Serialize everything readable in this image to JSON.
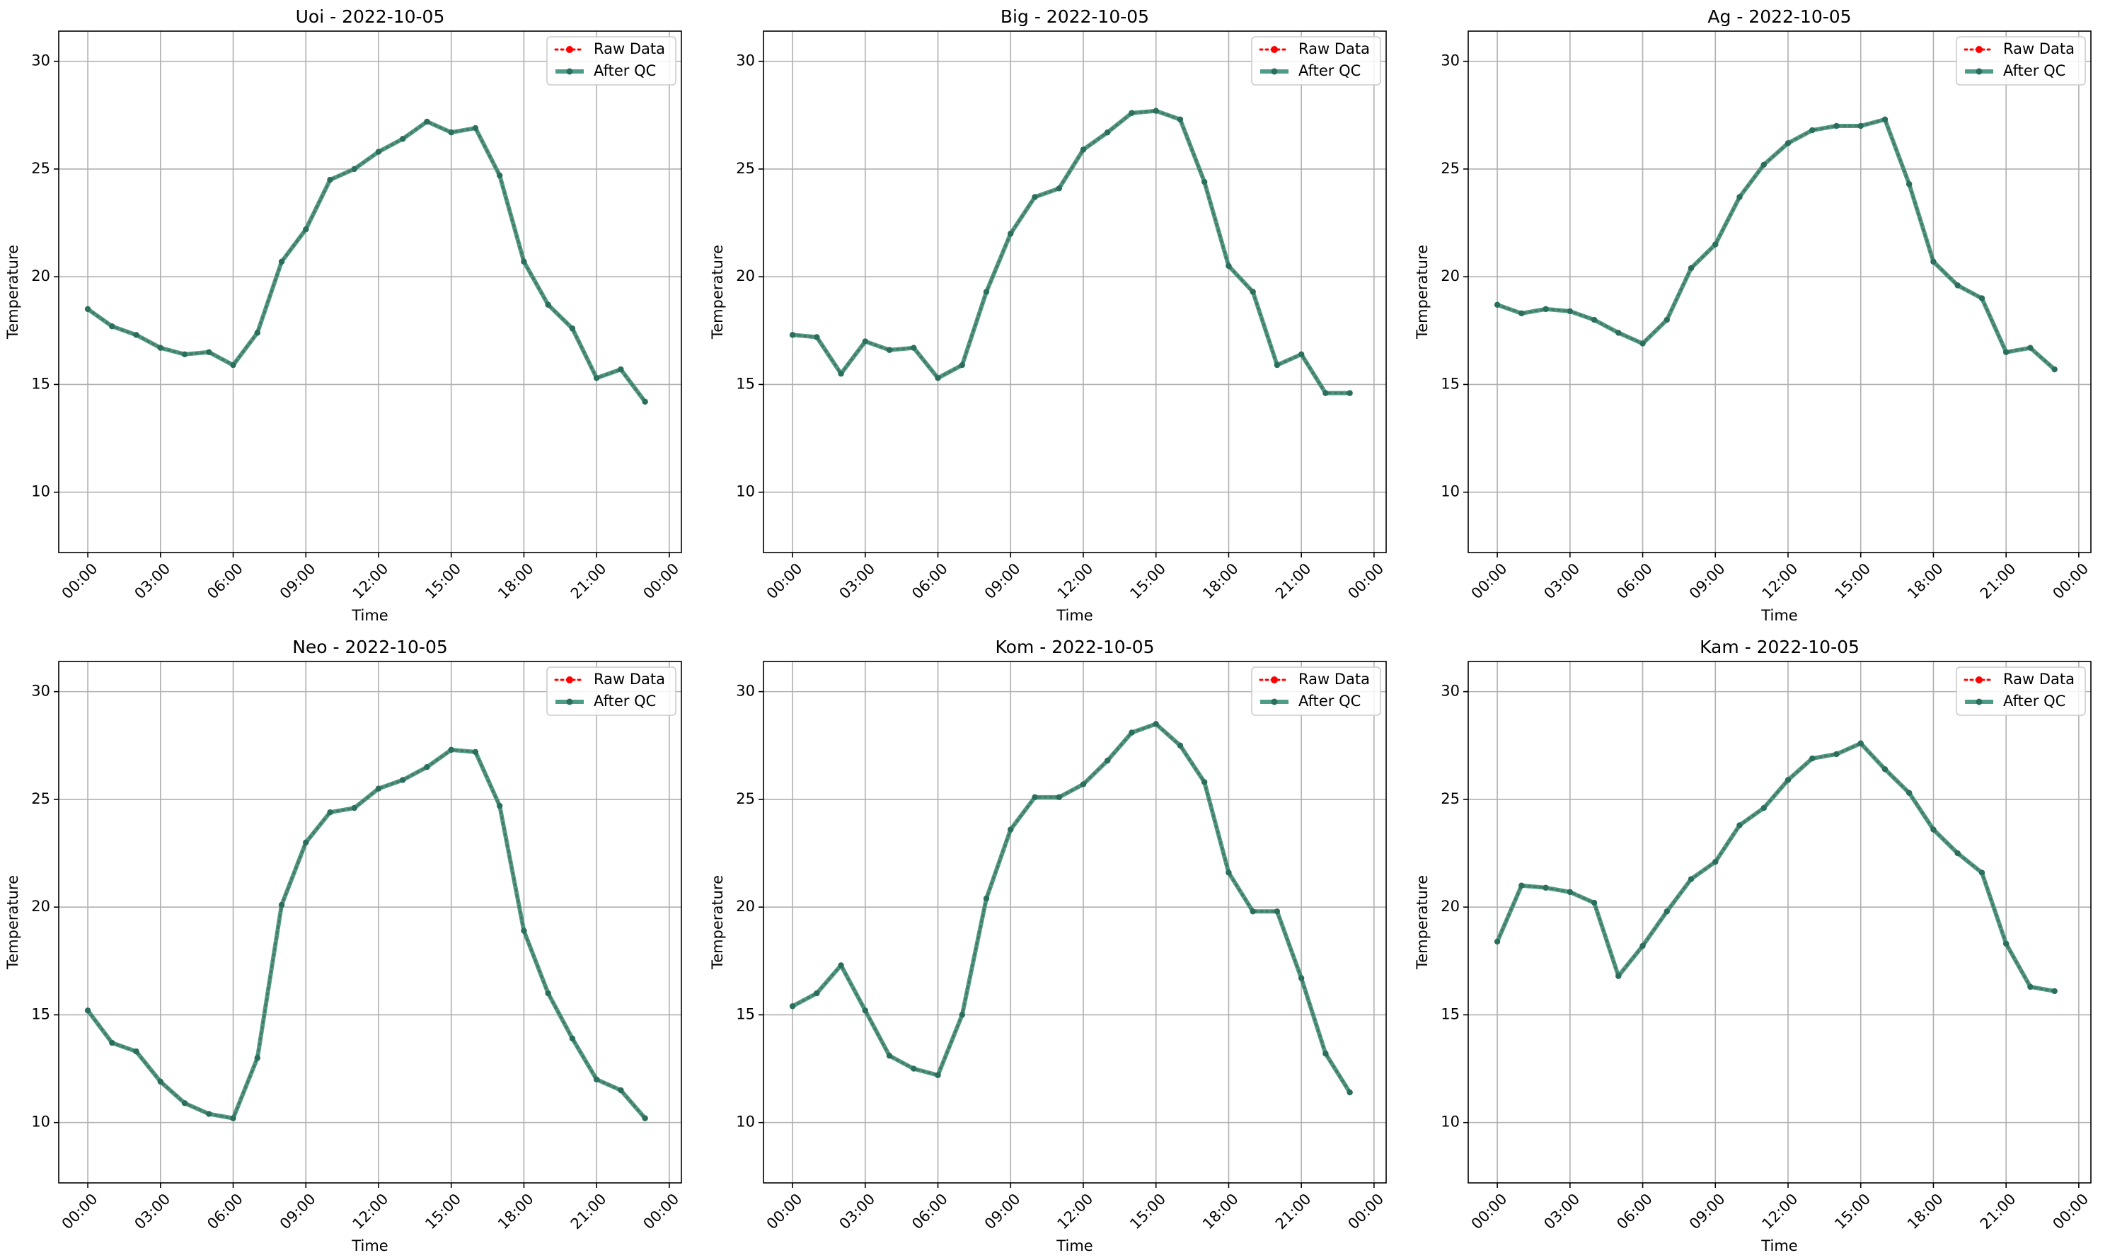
{
  "chart_data": [
    {
      "type": "line",
      "title": "Uoi - 2022-10-05",
      "xlabel": "Time",
      "ylabel": "Temperature",
      "ylim": [
        7.2,
        31.4
      ],
      "yticks": [
        10,
        15,
        20,
        25,
        30
      ],
      "x_hours": [
        0,
        1,
        2,
        3,
        4,
        5,
        6,
        7,
        8,
        9,
        10,
        11,
        12,
        13,
        14,
        15,
        16,
        17,
        18,
        19,
        20,
        21,
        22,
        23
      ],
      "xticks": [
        "00:00",
        "03:00",
        "06:00",
        "09:00",
        "12:00",
        "15:00",
        "18:00",
        "21:00",
        "00:00"
      ],
      "grid": true,
      "legend": "top-right",
      "series": [
        {
          "name": "Raw Data",
          "color": "#ff0000",
          "values": [
            18.5,
            17.7,
            17.3,
            16.7,
            16.4,
            16.5,
            15.9,
            17.4,
            20.7,
            22.2,
            24.5,
            25.0,
            25.8,
            26.4,
            27.2,
            26.7,
            26.9,
            24.7,
            20.7,
            18.7,
            17.6,
            15.3,
            15.7,
            14.2
          ]
        },
        {
          "name": "After QC",
          "color": "#2e8b72",
          "values": [
            18.5,
            17.7,
            17.3,
            16.7,
            16.4,
            16.5,
            15.9,
            17.4,
            20.7,
            22.2,
            24.5,
            25.0,
            25.8,
            26.4,
            27.2,
            26.7,
            26.9,
            24.7,
            20.7,
            18.7,
            17.6,
            15.3,
            15.7,
            14.2
          ]
        }
      ]
    },
    {
      "type": "line",
      "title": "Big - 2022-10-05",
      "xlabel": "Time",
      "ylabel": "Temperature",
      "ylim": [
        7.2,
        31.4
      ],
      "yticks": [
        10,
        15,
        20,
        25,
        30
      ],
      "x_hours": [
        0,
        1,
        2,
        3,
        4,
        5,
        6,
        7,
        8,
        9,
        10,
        11,
        12,
        13,
        14,
        15,
        16,
        17,
        18,
        19,
        20,
        21,
        22,
        23
      ],
      "xticks": [
        "00:00",
        "03:00",
        "06:00",
        "09:00",
        "12:00",
        "15:00",
        "18:00",
        "21:00",
        "00:00"
      ],
      "grid": true,
      "legend": "top-right",
      "series": [
        {
          "name": "Raw Data",
          "color": "#ff0000",
          "values": [
            17.3,
            17.2,
            15.5,
            17.0,
            16.6,
            16.7,
            15.3,
            15.9,
            19.3,
            22.0,
            23.7,
            24.1,
            25.9,
            26.7,
            27.6,
            27.7,
            27.3,
            24.4,
            20.5,
            19.3,
            15.9,
            16.4,
            14.6,
            14.6
          ]
        },
        {
          "name": "After QC",
          "color": "#2e8b72",
          "values": [
            17.3,
            17.2,
            15.5,
            17.0,
            16.6,
            16.7,
            15.3,
            15.9,
            19.3,
            22.0,
            23.7,
            24.1,
            25.9,
            26.7,
            27.6,
            27.7,
            27.3,
            24.4,
            20.5,
            19.3,
            15.9,
            16.4,
            14.6,
            14.6
          ]
        }
      ]
    },
    {
      "type": "line",
      "title": "Ag - 2022-10-05",
      "xlabel": "Time",
      "ylabel": "Temperature",
      "ylim": [
        7.2,
        31.4
      ],
      "yticks": [
        10,
        15,
        20,
        25,
        30
      ],
      "x_hours": [
        0,
        1,
        2,
        3,
        4,
        5,
        6,
        7,
        8,
        9,
        10,
        11,
        12,
        13,
        14,
        15,
        16,
        17,
        18,
        19,
        20,
        21,
        22,
        23
      ],
      "xticks": [
        "00:00",
        "03:00",
        "06:00",
        "09:00",
        "12:00",
        "15:00",
        "18:00",
        "21:00",
        "00:00"
      ],
      "grid": true,
      "legend": "top-right",
      "series": [
        {
          "name": "Raw Data",
          "color": "#ff0000",
          "values": [
            18.7,
            18.3,
            18.5,
            18.4,
            18.0,
            17.4,
            16.9,
            18.0,
            20.4,
            21.5,
            23.7,
            25.2,
            26.2,
            26.8,
            27.0,
            27.0,
            27.3,
            24.3,
            20.7,
            19.6,
            19.0,
            16.5,
            16.7,
            15.7
          ]
        },
        {
          "name": "After QC",
          "color": "#2e8b72",
          "values": [
            18.7,
            18.3,
            18.5,
            18.4,
            18.0,
            17.4,
            16.9,
            18.0,
            20.4,
            21.5,
            23.7,
            25.2,
            26.2,
            26.8,
            27.0,
            27.0,
            27.3,
            24.3,
            20.7,
            19.6,
            19.0,
            16.5,
            16.7,
            15.7
          ]
        }
      ]
    },
    {
      "type": "line",
      "title": "Neo - 2022-10-05",
      "xlabel": "Time",
      "ylabel": "Temperature",
      "ylim": [
        7.2,
        31.4
      ],
      "yticks": [
        10,
        15,
        20,
        25,
        30
      ],
      "x_hours": [
        0,
        1,
        2,
        3,
        4,
        5,
        6,
        7,
        8,
        9,
        10,
        11,
        12,
        13,
        14,
        15,
        16,
        17,
        18,
        19,
        20,
        21,
        22,
        23
      ],
      "xticks": [
        "00:00",
        "03:00",
        "06:00",
        "09:00",
        "12:00",
        "15:00",
        "18:00",
        "21:00",
        "00:00"
      ],
      "grid": true,
      "legend": "top-right",
      "series": [
        {
          "name": "Raw Data",
          "color": "#ff0000",
          "values": [
            15.2,
            13.7,
            13.3,
            11.9,
            10.9,
            10.4,
            10.2,
            13.0,
            20.1,
            23.0,
            24.4,
            24.6,
            25.5,
            25.9,
            26.5,
            27.3,
            27.2,
            24.7,
            18.9,
            16.0,
            13.9,
            12.0,
            11.5,
            10.2
          ]
        },
        {
          "name": "After QC",
          "color": "#2e8b72",
          "values": [
            15.2,
            13.7,
            13.3,
            11.9,
            10.9,
            10.4,
            10.2,
            13.0,
            20.1,
            23.0,
            24.4,
            24.6,
            25.5,
            25.9,
            26.5,
            27.3,
            27.2,
            24.7,
            18.9,
            16.0,
            13.9,
            12.0,
            11.5,
            10.2
          ]
        }
      ]
    },
    {
      "type": "line",
      "title": "Kom - 2022-10-05",
      "xlabel": "Time",
      "ylabel": "Temperature",
      "ylim": [
        7.2,
        31.4
      ],
      "yticks": [
        10,
        15,
        20,
        25,
        30
      ],
      "x_hours": [
        0,
        1,
        2,
        3,
        4,
        5,
        6,
        7,
        8,
        9,
        10,
        11,
        12,
        13,
        14,
        15,
        16,
        17,
        18,
        19,
        20,
        21,
        22,
        23
      ],
      "xticks": [
        "00:00",
        "03:00",
        "06:00",
        "09:00",
        "12:00",
        "15:00",
        "18:00",
        "21:00",
        "00:00"
      ],
      "grid": true,
      "legend": "top-right",
      "series": [
        {
          "name": "Raw Data",
          "color": "#ff0000",
          "values": [
            15.4,
            16.0,
            17.3,
            15.2,
            13.1,
            12.5,
            12.2,
            15.0,
            20.4,
            23.6,
            25.1,
            25.1,
            25.7,
            26.8,
            28.1,
            28.5,
            27.5,
            25.8,
            21.6,
            19.8,
            19.8,
            16.7,
            13.2,
            11.4
          ]
        },
        {
          "name": "After QC",
          "color": "#2e8b72",
          "values": [
            15.4,
            16.0,
            17.3,
            15.2,
            13.1,
            12.5,
            12.2,
            15.0,
            20.4,
            23.6,
            25.1,
            25.1,
            25.7,
            26.8,
            28.1,
            28.5,
            27.5,
            25.8,
            21.6,
            19.8,
            19.8,
            16.7,
            13.2,
            11.4
          ]
        }
      ]
    },
    {
      "type": "line",
      "title": "Kam - 2022-10-05",
      "xlabel": "Time",
      "ylabel": "Temperature",
      "ylim": [
        7.2,
        31.4
      ],
      "yticks": [
        10,
        15,
        20,
        25,
        30
      ],
      "x_hours": [
        0,
        1,
        2,
        3,
        4,
        5,
        6,
        7,
        8,
        9,
        10,
        11,
        12,
        13,
        14,
        15,
        16,
        17,
        18,
        19,
        20,
        21,
        22,
        23
      ],
      "xticks": [
        "00:00",
        "03:00",
        "06:00",
        "09:00",
        "12:00",
        "15:00",
        "18:00",
        "21:00",
        "00:00"
      ],
      "grid": true,
      "legend": "top-right",
      "series": [
        {
          "name": "Raw Data",
          "color": "#ff0000",
          "values": [
            18.4,
            21.0,
            20.9,
            20.7,
            20.2,
            16.8,
            18.2,
            19.8,
            21.3,
            22.1,
            23.8,
            24.6,
            25.9,
            26.9,
            27.1,
            27.6,
            26.4,
            25.3,
            23.6,
            22.5,
            21.6,
            18.3,
            16.3,
            16.1
          ]
        },
        {
          "name": "After QC",
          "color": "#2e8b72",
          "values": [
            18.4,
            21.0,
            20.9,
            20.7,
            20.2,
            16.8,
            18.2,
            19.8,
            21.3,
            22.1,
            23.8,
            24.6,
            25.9,
            26.9,
            27.1,
            27.6,
            26.4,
            25.3,
            23.6,
            22.5,
            21.6,
            18.3,
            16.3,
            16.1
          ]
        }
      ]
    }
  ]
}
